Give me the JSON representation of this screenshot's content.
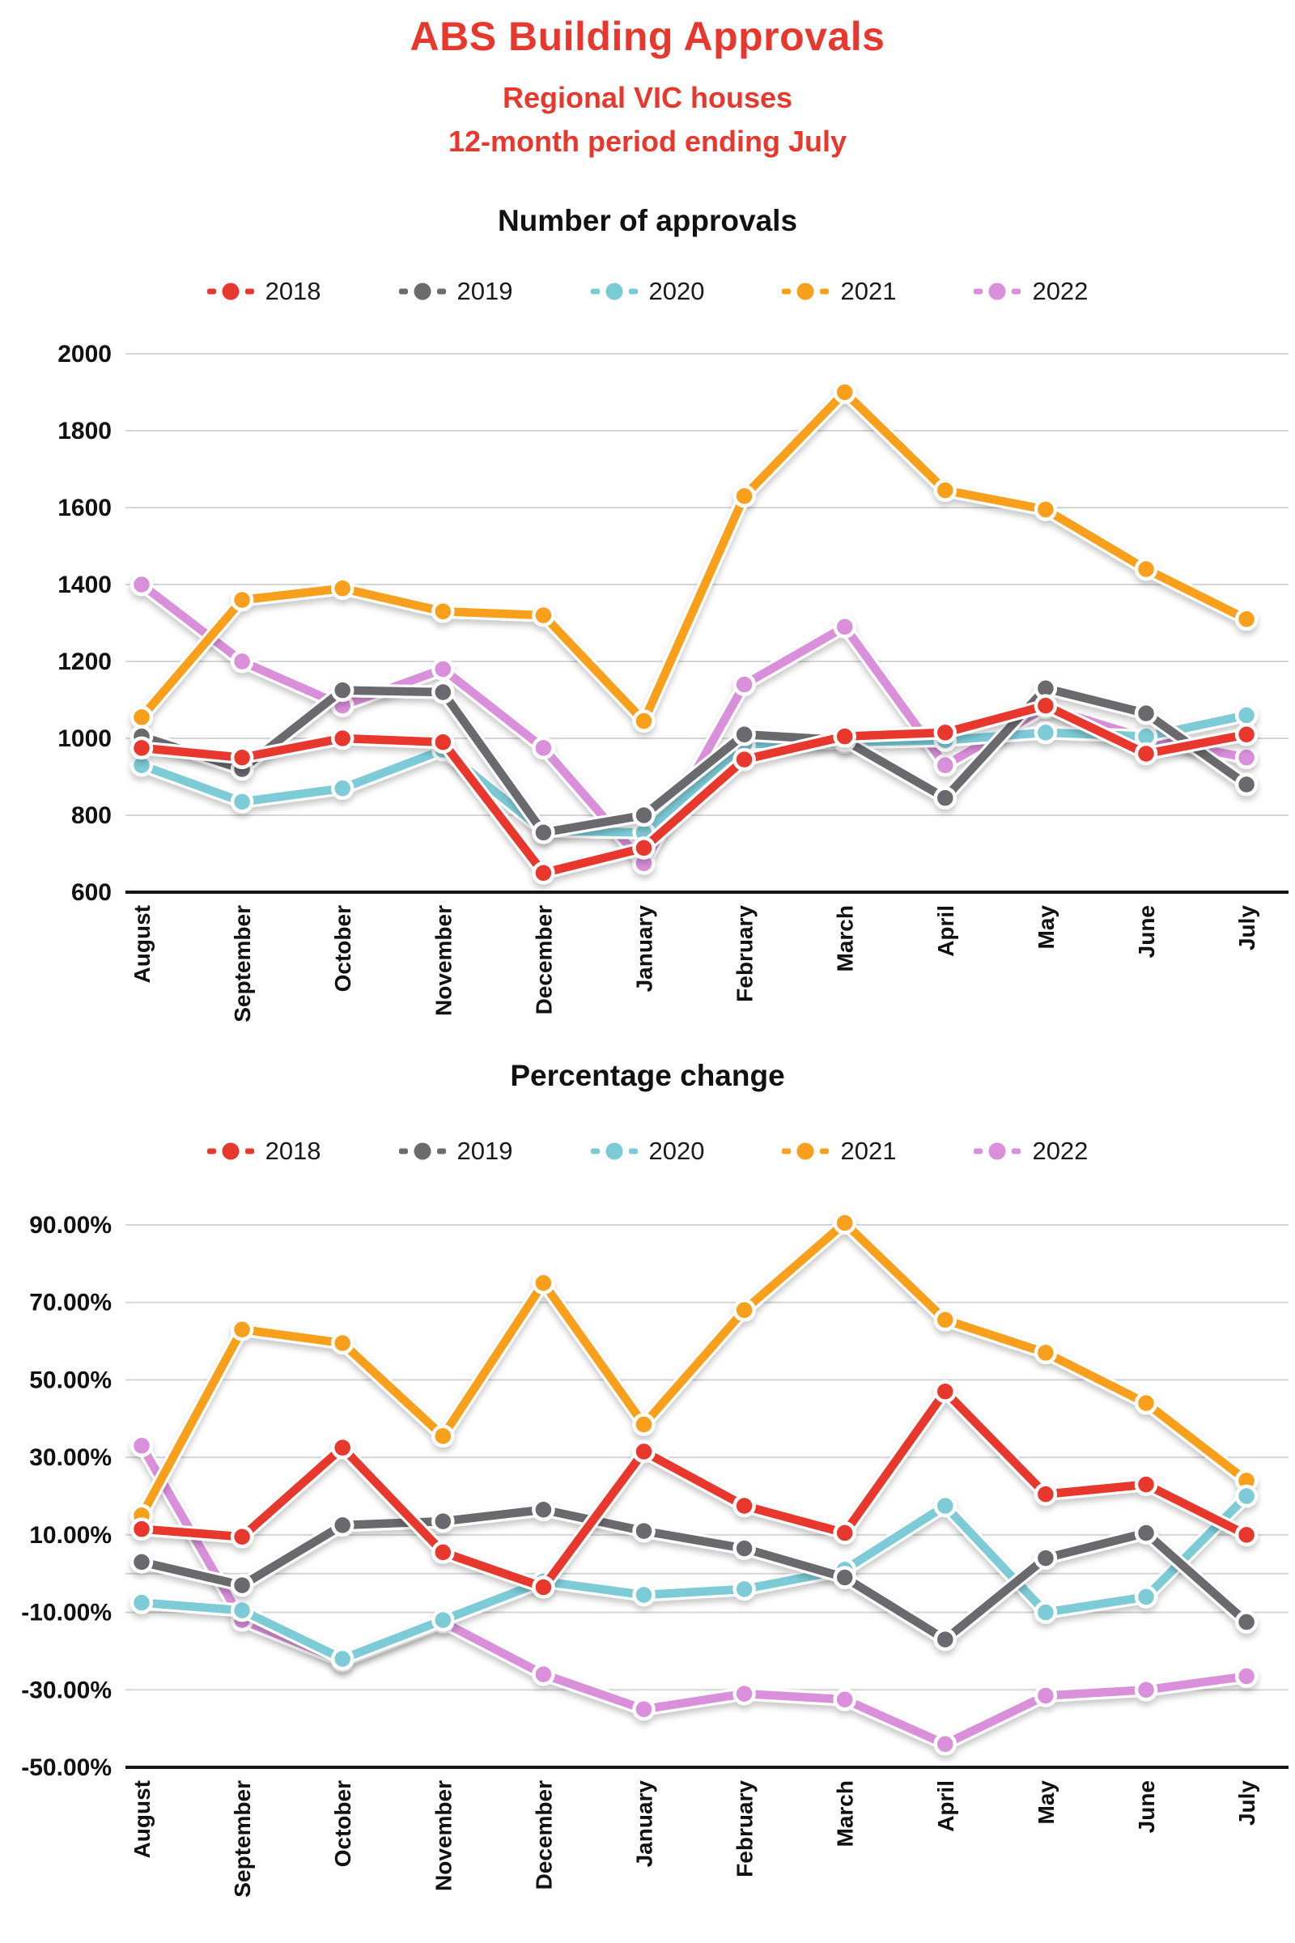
{
  "header": {
    "title": "ABS Building Approvals",
    "subtitle_line1": "Regional VIC houses",
    "subtitle_line2": "12-month period ending July"
  },
  "months": [
    "August",
    "September",
    "October",
    "November",
    "December",
    "January",
    "February",
    "March",
    "April",
    "May",
    "June",
    "July"
  ],
  "series_colors": {
    "2018": "#e8382d",
    "2019": "#6b6b6e",
    "2020": "#7bcbd7",
    "2021": "#f8a01e",
    "2022": "#d98fd9"
  },
  "chart_data": [
    {
      "type": "line",
      "title": "Number of approvals",
      "legend_position": "top",
      "grid": true,
      "ylim": [
        600,
        2000
      ],
      "yticks": [
        2000,
        1800,
        1600,
        1400,
        1200,
        1000,
        800,
        600
      ],
      "ytick_format": "integer",
      "categories": [
        "August",
        "September",
        "October",
        "November",
        "December",
        "January",
        "February",
        "March",
        "April",
        "May",
        "June",
        "July"
      ],
      "series": [
        {
          "name": "2018",
          "color": "#e8382d",
          "values": [
            975,
            950,
            1000,
            990,
            650,
            715,
            945,
            1005,
            1015,
            1085,
            960,
            1010
          ]
        },
        {
          "name": "2019",
          "color": "#6b6b6e",
          "values": [
            1005,
            920,
            1125,
            1120,
            755,
            800,
            1010,
            995,
            845,
            1130,
            1065,
            880
          ]
        },
        {
          "name": "2020",
          "color": "#7bcbd7",
          "values": [
            930,
            835,
            870,
            970,
            760,
            755,
            985,
            990,
            995,
            1015,
            1005,
            1060
          ]
        },
        {
          "name": "2021",
          "color": "#f8a01e",
          "values": [
            1055,
            1360,
            1390,
            1330,
            1320,
            1045,
            1630,
            1900,
            1645,
            1595,
            1440,
            1310
          ]
        },
        {
          "name": "2022",
          "color": "#d98fd9",
          "values": [
            1400,
            1200,
            1085,
            1180,
            975,
            675,
            1140,
            1290,
            930,
            1080,
            1000,
            950
          ]
        }
      ]
    },
    {
      "type": "line",
      "title": "Percentage change",
      "legend_position": "top",
      "grid": true,
      "ylim": [
        -50,
        90
      ],
      "yticks": [
        90,
        70,
        50,
        30,
        10,
        -10,
        -30,
        -50
      ],
      "extra_gridlines": [
        0
      ],
      "ytick_format": "percent_2dp",
      "categories": [
        "August",
        "September",
        "October",
        "November",
        "December",
        "January",
        "February",
        "March",
        "April",
        "May",
        "June",
        "July"
      ],
      "series": [
        {
          "name": "2018",
          "color": "#e8382d",
          "values": [
            11.5,
            9.5,
            32.5,
            5.5,
            -3.5,
            31.5,
            17.5,
            10.5,
            47,
            20.5,
            23,
            10
          ]
        },
        {
          "name": "2019",
          "color": "#6b6b6e",
          "values": [
            3,
            -3,
            12.5,
            13.5,
            16.5,
            11,
            6.5,
            -1,
            -17,
            4,
            10.5,
            -12.5
          ]
        },
        {
          "name": "2020",
          "color": "#7bcbd7",
          "values": [
            -7.5,
            -9.5,
            -22,
            -12,
            -2,
            -5.5,
            -4,
            1,
            17.5,
            -10,
            -6,
            20
          ]
        },
        {
          "name": "2021",
          "color": "#f8a01e",
          "values": [
            15,
            63,
            59.5,
            35.5,
            75,
            38.5,
            68,
            90.5,
            65.5,
            57,
            44,
            24
          ]
        },
        {
          "name": "2022",
          "color": "#d98fd9",
          "values": [
            33,
            -12,
            -22.5,
            -12.5,
            -26,
            -35,
            -31,
            -32.5,
            -44,
            -31.5,
            -30,
            -26.5
          ]
        }
      ]
    }
  ]
}
